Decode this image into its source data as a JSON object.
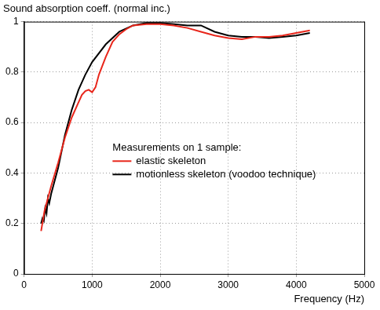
{
  "chart_data": {
    "type": "line",
    "title": "Sound absorption coeff. (normal inc.)",
    "x_label": "Frequency (Hz)",
    "legend_title": "Measurements on 1 sample:",
    "legend": "center",
    "grid": true,
    "xlim": [
      0,
      5000
    ],
    "xticks": [
      0,
      1000,
      2000,
      3000,
      4000,
      5000
    ],
    "ylim": [
      0,
      1
    ],
    "yticks": [
      0,
      0.2,
      0.4,
      0.6,
      0.8,
      1
    ],
    "series": [
      {
        "name": "elastic skeleton",
        "color": "#e8261b",
        "x": [
          250,
          300,
          400,
          500,
          600,
          700,
          800,
          850,
          900,
          950,
          1000,
          1050,
          1100,
          1200,
          1300,
          1400,
          1500,
          1600,
          1800,
          2000,
          2200,
          2400,
          2600,
          2800,
          3000,
          3200,
          3400,
          3600,
          3800,
          4000,
          4200
        ],
        "values": [
          0.17,
          0.25,
          0.35,
          0.44,
          0.54,
          0.62,
          0.68,
          0.71,
          0.725,
          0.73,
          0.72,
          0.74,
          0.79,
          0.86,
          0.92,
          0.95,
          0.97,
          0.985,
          0.99,
          0.99,
          0.985,
          0.975,
          0.96,
          0.945,
          0.935,
          0.93,
          0.94,
          0.94,
          0.945,
          0.955,
          0.965
        ]
      },
      {
        "name": "motionless skeleton (voodoo technique)",
        "color": "#000000",
        "x": [
          250,
          270,
          290,
          310,
          330,
          350,
          370,
          400,
          500,
          600,
          700,
          800,
          900,
          1000,
          1200,
          1400,
          1600,
          1800,
          2000,
          2200,
          2400,
          2600,
          2800,
          3000,
          3200,
          3400,
          3600,
          3800,
          4000,
          4200
        ],
        "values": [
          0.2,
          0.22,
          0.21,
          0.26,
          0.24,
          0.3,
          0.28,
          0.32,
          0.42,
          0.55,
          0.65,
          0.73,
          0.79,
          0.84,
          0.91,
          0.96,
          0.985,
          0.995,
          0.995,
          0.99,
          0.985,
          0.985,
          0.96,
          0.945,
          0.94,
          0.94,
          0.935,
          0.94,
          0.945,
          0.955
        ]
      }
    ]
  }
}
